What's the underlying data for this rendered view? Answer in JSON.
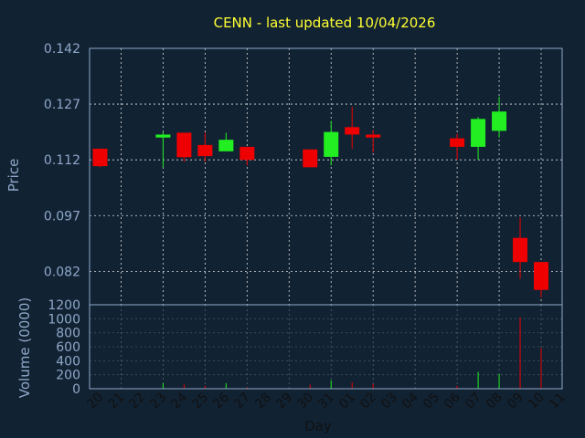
{
  "chart_data": [
    {
      "type": "candlestick",
      "title": "CENN - last updated 10/04/2026",
      "ylabel": "Price",
      "ylim": [
        0.073,
        0.142
      ],
      "y_ticks": [
        "0.142",
        "0.127",
        "0.112",
        "0.097",
        "0.082"
      ],
      "y_tick_values": [
        0.142,
        0.127,
        0.112,
        0.097,
        0.082
      ],
      "colors": {
        "up": "#22ee22",
        "down": "#ee0000",
        "grid": "#dddddd",
        "text": "#8fa8c8",
        "title": "#ffff33",
        "background": "#112233"
      },
      "candles": [
        {
          "day": "20",
          "open": 0.115,
          "high": 0.115,
          "low": 0.11,
          "close": 0.1103
        },
        {
          "day": "23",
          "open": 0.118,
          "high": 0.1195,
          "low": 0.11,
          "close": 0.1188
        },
        {
          "day": "24",
          "open": 0.1193,
          "high": 0.1193,
          "low": 0.1115,
          "close": 0.1127
        },
        {
          "day": "25",
          "open": 0.116,
          "high": 0.1193,
          "low": 0.1115,
          "close": 0.113
        },
        {
          "day": "26",
          "open": 0.1143,
          "high": 0.1193,
          "low": 0.1143,
          "close": 0.1174
        },
        {
          "day": "27",
          "open": 0.1155,
          "high": 0.1155,
          "low": 0.1105,
          "close": 0.112
        },
        {
          "day": "30",
          "open": 0.1148,
          "high": 0.1148,
          "low": 0.11,
          "close": 0.11
        },
        {
          "day": "31",
          "open": 0.1128,
          "high": 0.1225,
          "low": 0.1105,
          "close": 0.1195
        },
        {
          "day": "01",
          "open": 0.1208,
          "high": 0.1263,
          "low": 0.115,
          "close": 0.1188
        },
        {
          "day": "02",
          "open": 0.1188,
          "high": 0.12,
          "low": 0.114,
          "close": 0.118
        },
        {
          "day": "06",
          "open": 0.1178,
          "high": 0.119,
          "low": 0.112,
          "close": 0.1155
        },
        {
          "day": "07",
          "open": 0.1155,
          "high": 0.1235,
          "low": 0.112,
          "close": 0.123
        },
        {
          "day": "08",
          "open": 0.1198,
          "high": 0.129,
          "low": 0.118,
          "close": 0.125
        },
        {
          "day": "09",
          "open": 0.091,
          "high": 0.0965,
          "low": 0.08,
          "close": 0.0845
        },
        {
          "day": "10",
          "open": 0.0845,
          "high": 0.0845,
          "low": 0.075,
          "close": 0.077
        }
      ]
    },
    {
      "type": "bar",
      "ylabel": "Volume (0000)",
      "xlabel": "Day",
      "ylim": [
        0,
        1200
      ],
      "y_ticks": [
        "1200",
        "1000",
        "800",
        "600",
        "400",
        "200",
        "0"
      ],
      "y_tick_values": [
        1200,
        1000,
        800,
        600,
        400,
        200,
        0
      ],
      "categories": [
        "20",
        "21",
        "22",
        "23",
        "24",
        "25",
        "26",
        "27",
        "28",
        "29",
        "30",
        "31",
        "01",
        "02",
        "03",
        "04",
        "05",
        "06",
        "07",
        "08",
        "09",
        "10",
        "11"
      ],
      "values": [
        5,
        0,
        0,
        80,
        60,
        40,
        80,
        20,
        0,
        0,
        60,
        120,
        90,
        70,
        0,
        0,
        0,
        40,
        240,
        210,
        1020,
        580,
        0
      ]
    }
  ]
}
